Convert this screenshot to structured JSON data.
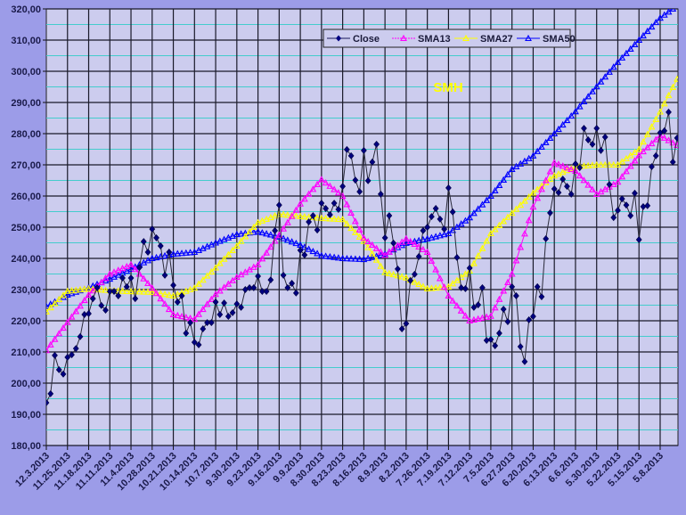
{
  "chart_data": {
    "type": "line",
    "title": "SMH",
    "title_color": "#ffff00",
    "xlabel": "",
    "ylabel": "",
    "ylim": [
      180,
      320
    ],
    "y_ticks": [
      "320,00",
      "310,00",
      "300,00",
      "290,00",
      "280,00",
      "270,00",
      "260,00",
      "250,00",
      "240,00",
      "230,00",
      "220,00",
      "210,00",
      "200,00",
      "190,00",
      "180,00"
    ],
    "x_axis_reversed": true,
    "x_tick_labels": [
      "12.3.2013",
      "11.25.2013",
      "11.18.2013",
      "11.11.2013",
      "11.4.2013",
      "10.28.2013",
      "10.21.2013",
      "10.14.2013",
      "10.7.2013",
      "9.30.2013",
      "9.23.2013",
      "9.16.2013",
      "9.9.2013",
      "8.30.2013",
      "8.23.2013",
      "8.16.2013",
      "8.9.2013",
      "8.2.2013",
      "7.26.2013",
      "7.19.2013",
      "7.12.2013",
      "7.5.2013",
      "6.27.2013",
      "6.20.2013",
      "6.13.2013",
      "6.6.2013",
      "5.30.2013",
      "5.22.2013",
      "5.15.2013",
      "5.8.2013"
    ],
    "grid": true,
    "legend_position": "top",
    "background": "#ccccee",
    "close": {
      "name": "Close",
      "color": "#000080",
      "marker": "diamond",
      "values": [
        193.7,
        196.6,
        208.9,
        204.3,
        202.9,
        208.3,
        209.1,
        211.1,
        214.9,
        222.0,
        222.3,
        227.1,
        230.6,
        224.9,
        223.4,
        229.4,
        229.4,
        228.0,
        233.7,
        230.9,
        233.7,
        227.1,
        237.1,
        245.4,
        242.0,
        249.4,
        246.6,
        244.0,
        234.6,
        242.0,
        231.4,
        226.0,
        228.0,
        216.0,
        219.4,
        213.1,
        212.3,
        217.4,
        219.4,
        219.4,
        226.0,
        222.0,
        225.7,
        221.4,
        222.6,
        225.4,
        224.3,
        230.0,
        230.6,
        230.6,
        234.3,
        229.4,
        229.4,
        233.1,
        248.9,
        257.1,
        234.6,
        230.6,
        232.0,
        228.9,
        242.6,
        241.1,
        251.7,
        253.7,
        249.1,
        257.7,
        256.0,
        254.0,
        257.7,
        255.7,
        263.1,
        274.9,
        272.9,
        265.1,
        261.4,
        274.6,
        264.9,
        270.9,
        276.6,
        260.6,
        246.6,
        253.7,
        244.9,
        236.6,
        217.4,
        219.1,
        232.9,
        234.9,
        240.6,
        248.9,
        250.0,
        253.4,
        256.0,
        252.6,
        249.4,
        262.6,
        254.9,
        240.3,
        230.6,
        230.3,
        236.9,
        224.3,
        225.1,
        230.6,
        213.7,
        214.0,
        212.0,
        216.0,
        223.7,
        219.7,
        230.9,
        228.0,
        211.7,
        206.9,
        220.3,
        221.4,
        230.9,
        227.7,
        246.3,
        254.6,
        262.3,
        261.1,
        265.4,
        263.1,
        260.6,
        270.3,
        269.1,
        281.7,
        278.0,
        276.6,
        281.7,
        274.6,
        278.9,
        263.7,
        253.1,
        255.4,
        259.1,
        257.1,
        253.7,
        260.9,
        246.0,
        256.6,
        256.9,
        269.4,
        272.9,
        280.3,
        280.9,
        286.9,
        270.9,
        278.6
      ]
    },
    "sma_point_index": [
      0,
      5,
      10,
      15,
      20,
      25,
      30,
      35,
      40,
      45,
      50,
      55,
      60,
      65,
      70,
      75,
      80,
      85,
      90,
      95,
      100,
      105,
      110,
      115,
      120,
      125,
      130,
      135,
      140,
      145,
      149
    ],
    "series": [
      {
        "name": "SMA13",
        "color": "#ff00ff",
        "marker": "triangle",
        "values": [
          210.5,
          219.5,
          228.3,
          235,
          238,
          230.5,
          222,
          220.5,
          228.5,
          234,
          238,
          247.5,
          257.5,
          265.3,
          260,
          246.5,
          241,
          246.3,
          242,
          228,
          220,
          221.5,
          235,
          256.5,
          270.7,
          268,
          260.6,
          264.5,
          273,
          279.4,
          276.3
        ]
      },
      {
        "name": "SMA27",
        "color": "#ffff00",
        "marker": "triangle",
        "values": [
          222.9,
          229.5,
          230.3,
          229.7,
          229.4,
          229.2,
          228,
          230.5,
          237,
          244,
          251.5,
          254.2,
          253.5,
          252.9,
          252.5,
          245.5,
          235.5,
          233.8,
          230.3,
          230.9,
          236,
          248,
          254.5,
          261,
          266.5,
          269.4,
          270,
          270,
          275,
          287,
          297.5
        ]
      },
      {
        "name": "SMA50",
        "color": "#0000ff",
        "marker": "triangle",
        "values": [
          224.6,
          228.3,
          230.6,
          233.4,
          236.6,
          240,
          241.4,
          242,
          245,
          247.7,
          248.6,
          246.9,
          244.3,
          240.9,
          240,
          239.7,
          241.4,
          244.9,
          246.3,
          248,
          253.1,
          260,
          268.6,
          272.9,
          280,
          287.1,
          295.1,
          302.9,
          310,
          317.1,
          321
        ]
      }
    ]
  }
}
